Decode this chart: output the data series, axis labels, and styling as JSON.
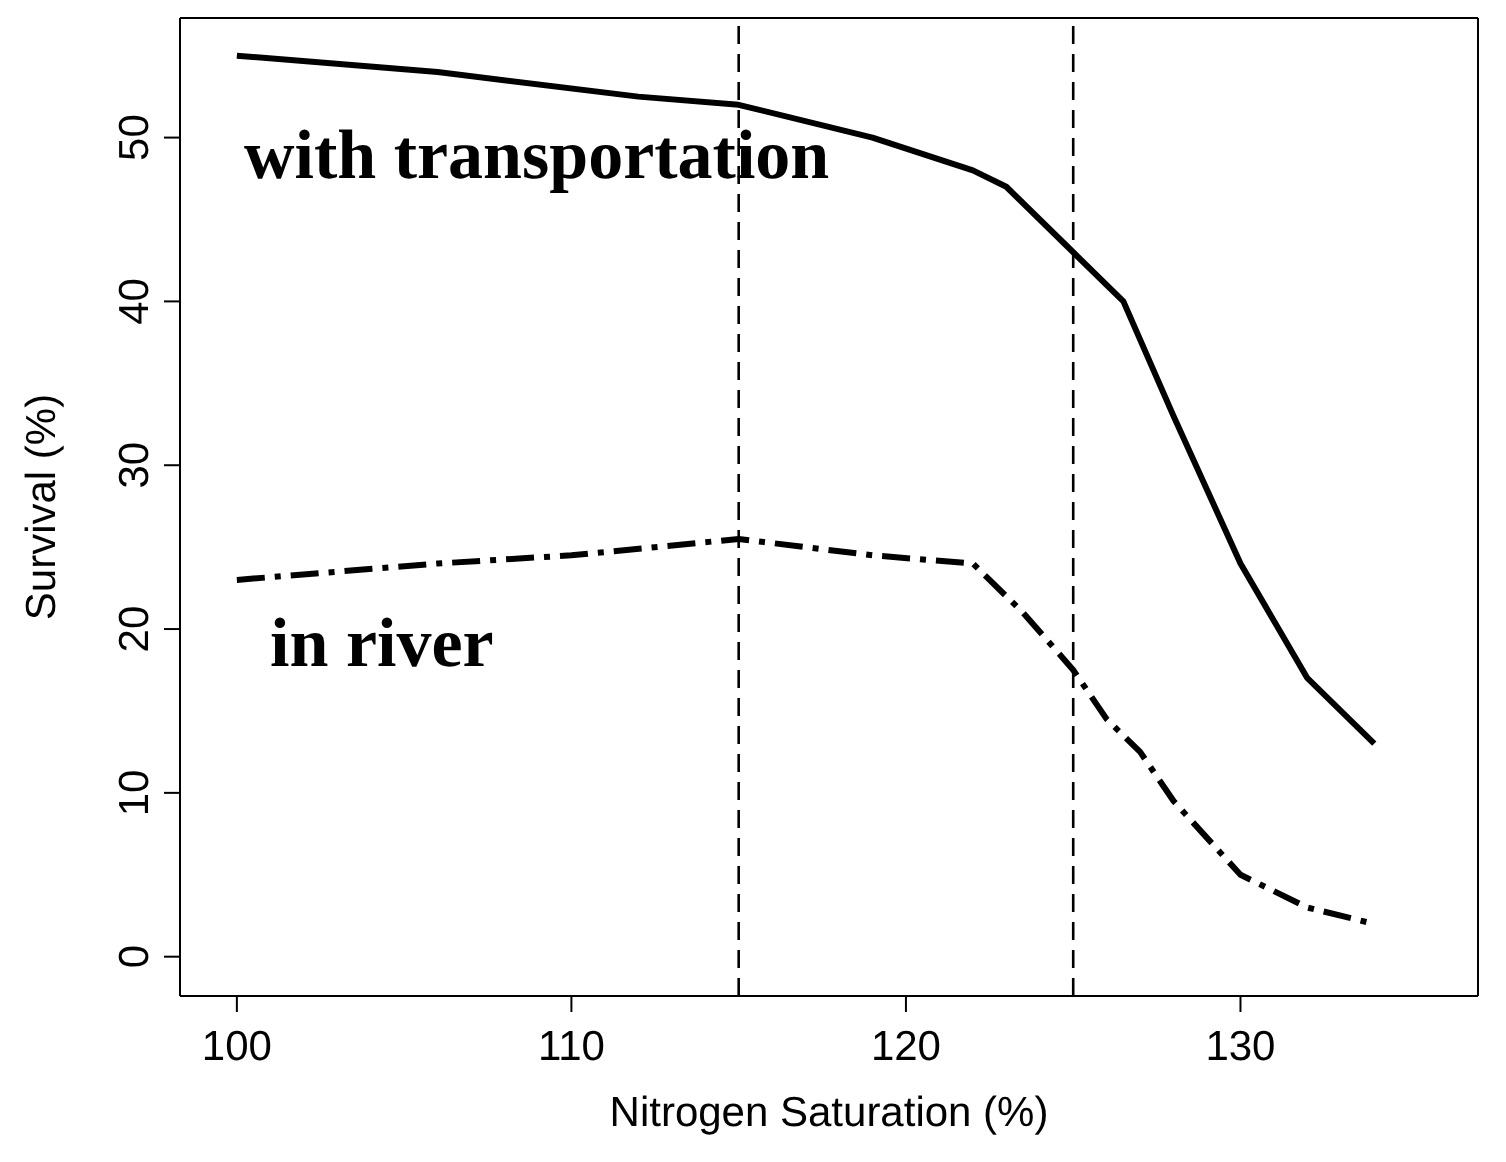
{
  "chart_data": {
    "type": "line",
    "xlabel": "Nitrogen Saturation (%)",
    "ylabel": "Survival (%)",
    "xlim": [
      98.3,
      137.1
    ],
    "ylim": [
      -2.4,
      57.3
    ],
    "xticks": [
      100,
      110,
      120,
      130
    ],
    "yticks": [
      0,
      10,
      20,
      30,
      40,
      50
    ],
    "legend": false,
    "marker": "none",
    "series": [
      {
        "color": "#000000",
        "line_style": "solid",
        "x": [
          100,
          106,
          112,
          115,
          119,
          122,
          123,
          125,
          126.5,
          128,
          130,
          132,
          134
        ],
        "values": [
          55,
          54,
          52.5,
          52,
          50,
          48,
          47,
          43,
          40,
          33,
          24,
          17,
          13
        ]
      },
      {
        "color": "#000000",
        "line_style": "dashed",
        "x": [
          100,
          106,
          110,
          115,
          119,
          122,
          123.5,
          125,
          126,
          127,
          128,
          130,
          132,
          134
        ],
        "values": [
          23,
          24,
          24.5,
          25.5,
          24.5,
          24,
          21,
          17.5,
          14.5,
          12.5,
          9.5,
          5,
          3,
          2
        ]
      }
    ],
    "ref_lines": [
      {
        "axis": "x",
        "value": 115,
        "color": "#000000",
        "line_style": "dashed"
      },
      {
        "axis": "x",
        "value": 125,
        "color": "#000000",
        "line_style": "dashed"
      }
    ],
    "annotations": [
      "with transportation",
      "in river"
    ]
  }
}
